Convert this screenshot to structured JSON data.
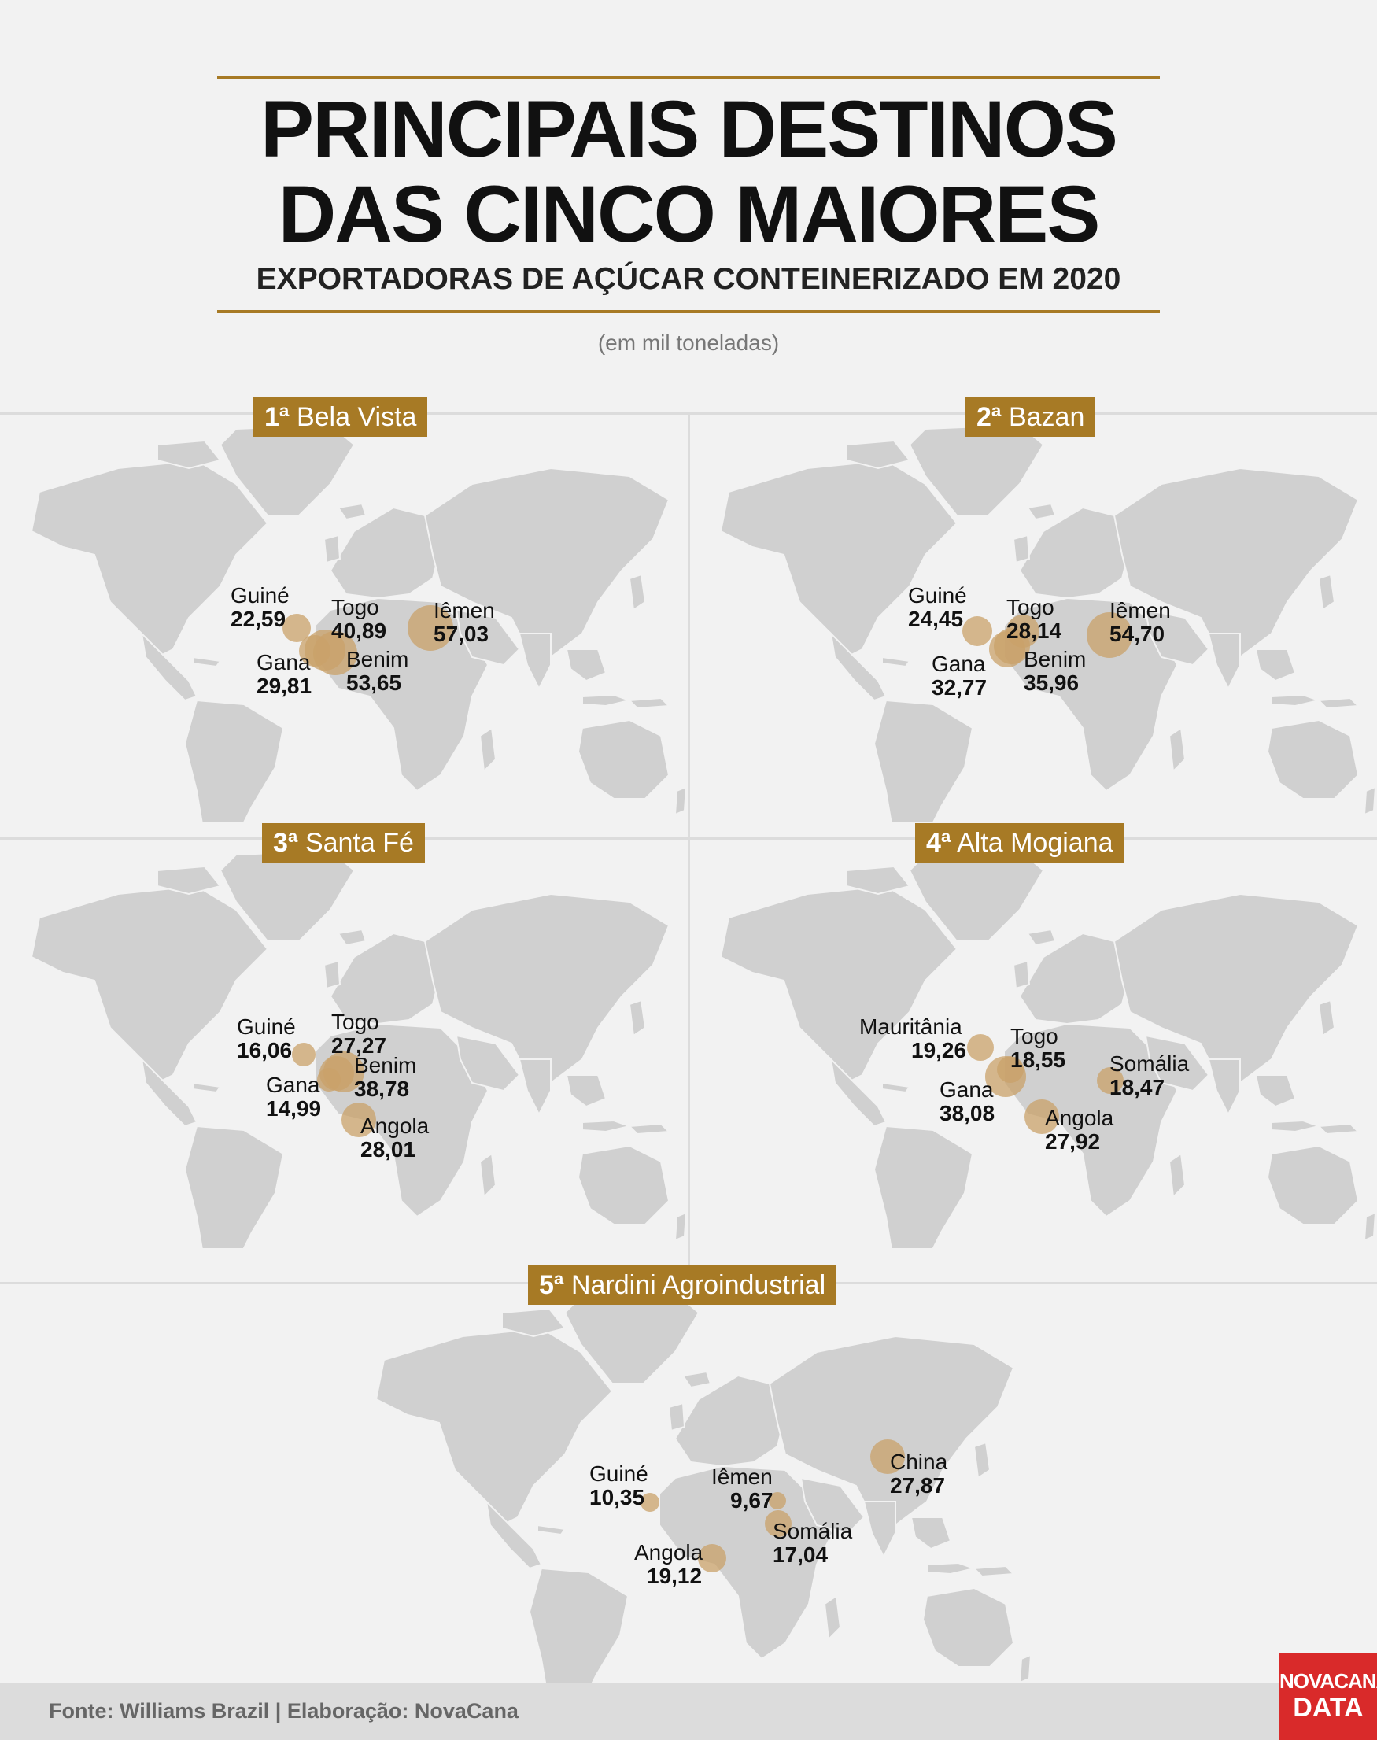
{
  "title": {
    "line1": "PRINCIPAIS DESTINOS",
    "line2": "DAS CINCO MAIORES",
    "subtitle": "EXPORTADORAS DE AÇÚCAR CONTEINERIZADO EM 2020"
  },
  "unit": "(em mil toneladas)",
  "colors": {
    "accent": "#a77a25",
    "land": "#d0d0d0",
    "bubble": "#c9a26a",
    "logo": "#d92a2a"
  },
  "panels": [
    {
      "rank": "1ª",
      "name": "Bela Vista",
      "destinations": [
        {
          "country": "Guiné",
          "value": "22,59"
        },
        {
          "country": "Togo",
          "value": "40,89"
        },
        {
          "country": "Iêmen",
          "value": "57,03"
        },
        {
          "country": "Gana",
          "value": "29,81"
        },
        {
          "country": "Benim",
          "value": "53,65"
        }
      ]
    },
    {
      "rank": "2ª",
      "name": "Bazan",
      "destinations": [
        {
          "country": "Guiné",
          "value": "24,45"
        },
        {
          "country": "Togo",
          "value": "28,14"
        },
        {
          "country": "Iêmen",
          "value": "54,70"
        },
        {
          "country": "Gana",
          "value": "32,77"
        },
        {
          "country": "Benim",
          "value": "35,96"
        }
      ]
    },
    {
      "rank": "3ª",
      "name": "Santa Fé",
      "destinations": [
        {
          "country": "Guiné",
          "value": "16,06"
        },
        {
          "country": "Togo",
          "value": "27,27"
        },
        {
          "country": "Gana",
          "value": "14,99"
        },
        {
          "country": "Benim",
          "value": "38,78"
        },
        {
          "country": "Angola",
          "value": "28,01"
        }
      ]
    },
    {
      "rank": "4ª",
      "name": " Alta Mogiana",
      "destinations": [
        {
          "country": "Mauritânia",
          "value": "19,26"
        },
        {
          "country": "Togo",
          "value": "18,55"
        },
        {
          "country": "Somália",
          "value": "18,47"
        },
        {
          "country": "Gana",
          "value": "38,08"
        },
        {
          "country": "Angola",
          "value": "27,92"
        }
      ]
    },
    {
      "rank": "5ª",
      "name": "Nardini Agroindustrial",
      "destinations": [
        {
          "country": "China",
          "value": "27,87"
        },
        {
          "country": "Guiné",
          "value": "10,35"
        },
        {
          "country": "Iêmen",
          "value": "9,67"
        },
        {
          "country": "Somália",
          "value": "17,04"
        },
        {
          "country": "Angola",
          "value": "19,12"
        }
      ]
    }
  ],
  "footer": {
    "source": "Fonte: Williams Brazil | Elaboração: NovaCana"
  },
  "logo": {
    "line1": "NOVACANA",
    "line2": "DATA"
  }
}
